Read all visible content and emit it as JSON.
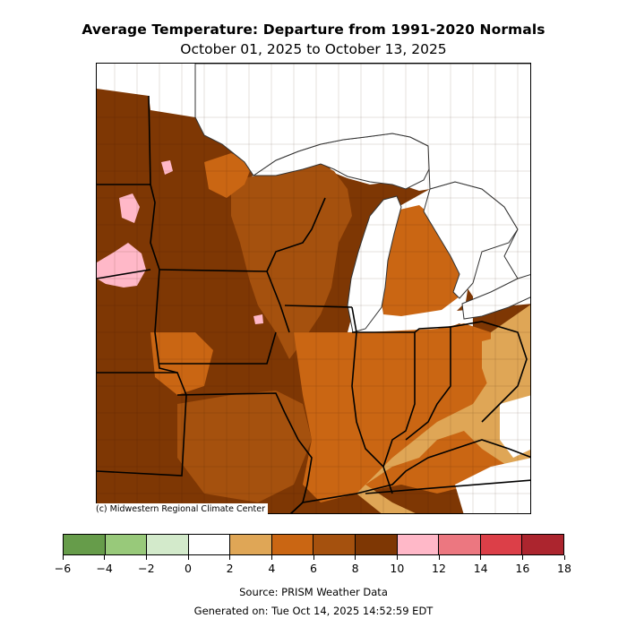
{
  "title": "Average Temperature: Departure from 1991-2020 Normals",
  "subtitle": "October 01, 2025 to October 13, 2025",
  "copyright": "(c) Midwestern Regional Climate Center",
  "source": "Source: PRISM Weather Data",
  "generated": "Generated on: Tue Oct 14, 2025 14:52:59 EDT",
  "colorbar": {
    "bins": [
      {
        "from": -6,
        "to": -4,
        "color": "#669c4a"
      },
      {
        "from": -4,
        "to": -2,
        "color": "#98c97a"
      },
      {
        "from": -2,
        "to": 0,
        "color": "#d3eacb"
      },
      {
        "from": 0,
        "to": 2,
        "color": "#ffffff"
      },
      {
        "from": 2,
        "to": 4,
        "color": "#dfa656"
      },
      {
        "from": 4,
        "to": 6,
        "color": "#ca6613"
      },
      {
        "from": 6,
        "to": 8,
        "color": "#a5510e"
      },
      {
        "from": 8,
        "to": 10,
        "color": "#7e3704"
      },
      {
        "from": 10,
        "to": 12,
        "color": "#ffb8c8"
      },
      {
        "from": 12,
        "to": 14,
        "color": "#ec7780"
      },
      {
        "from": 14,
        "to": 16,
        "color": "#dc3f48"
      },
      {
        "from": 16,
        "to": 18,
        "color": "#ac252e"
      }
    ],
    "tick_labels": [
      "−6",
      "−4",
      "−2",
      "0",
      "2",
      "4",
      "6",
      "8",
      "10",
      "12",
      "14",
      "16",
      "18"
    ]
  },
  "map": {
    "region": "Midwest",
    "water_color": "#ffffff",
    "state_border_color": "#000000",
    "county_border_color": "#3a1a00"
  }
}
